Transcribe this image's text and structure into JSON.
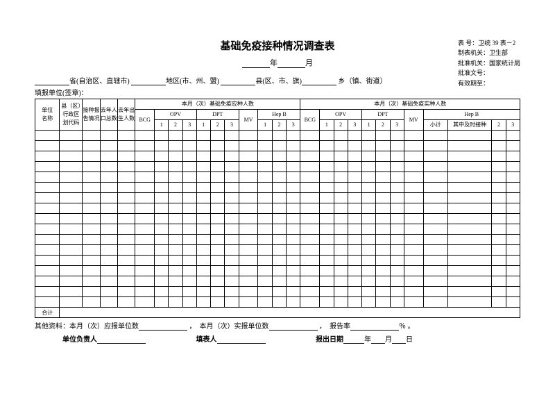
{
  "title": "基础免疫接种情况调查表",
  "date_year_label": "年",
  "date_month_label": "月",
  "meta": {
    "form_no": "表    号：卫统 39 表－2",
    "maker": "制表机关：卫生部",
    "approver": "批准机关：国家统计局",
    "approve_no": "批准文号：",
    "valid": "有效期至："
  },
  "loc": {
    "prov": "省(自治区、直辖市)",
    "region": "地区(市、州、盟)",
    "county": "县(区、市、旗)",
    "town": "乡（镇、街道）"
  },
  "fillorg": "填报单位(签章)：",
  "headers": {
    "unit": "单位\n名称",
    "county_code": "县（区）行政区划代码",
    "report_status": "接种报告情况",
    "lastyear_pop": "去年人口总数",
    "lastyear_birth": "去年出生人数",
    "group_due": "本月（次）基础免疫应种人数",
    "group_done": "本月（次）基础免疫实种人数",
    "bcg": "BCG",
    "opv": "OPV",
    "dpt": "DPT",
    "mv": "MV",
    "hepb": "Hep B",
    "n1": "1",
    "n2": "2",
    "n3": "3",
    "subtotal": "小计",
    "ontime": "其中及时接种"
  },
  "total_row": "合计",
  "footer1": {
    "other": "其他资料：本月（次）应报单位数",
    "actual": "本月（次）实报单位数",
    "rate": "报告率",
    "pct": "％ 。"
  },
  "footer2": {
    "leader": "单位负责人",
    "filler": "填表人",
    "rptdate": "报出日期",
    "y": "年",
    "m": "月",
    "d": "日"
  },
  "data_rows": 17
}
